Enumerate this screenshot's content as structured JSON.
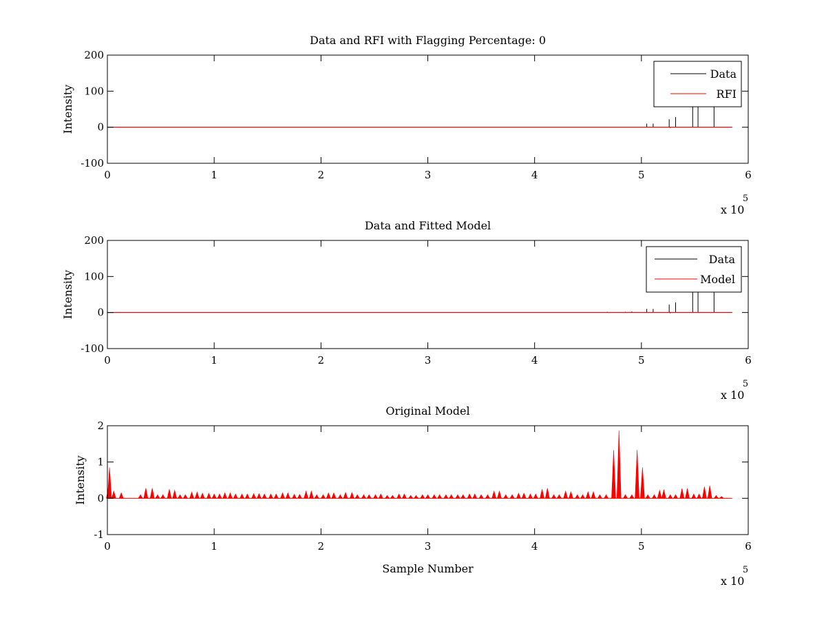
{
  "chart_data": [
    {
      "type": "line",
      "title": "Data and RFI with Flagging Percentage: 0",
      "xlabel": "",
      "ylabel": "Intensity",
      "xlim": [
        0,
        6
      ],
      "ylim": [
        -100,
        200
      ],
      "xticks": [
        "0",
        "1",
        "2",
        "3",
        "4",
        "5",
        "6"
      ],
      "yticks": [
        "-100",
        "0",
        "100",
        "200"
      ],
      "x_multiplier": "x 10",
      "x_exponent": "5",
      "legend_position": "top-right",
      "legend": [
        "Data",
        "RFI"
      ],
      "colors": {
        "Data": "#000000",
        "RFI": "#ff0000"
      },
      "baseline_range": [
        0,
        5.85
      ],
      "series": [
        {
          "name": "Data",
          "spikes": [
            [
              5.05,
              10
            ],
            [
              5.11,
              10
            ],
            [
              5.26,
              22
            ],
            [
              5.27,
              -2
            ],
            [
              5.32,
              28
            ],
            [
              5.48,
              60
            ],
            [
              5.53,
              60
            ],
            [
              5.68,
              60
            ]
          ]
        },
        {
          "name": "RFI",
          "spikes": []
        }
      ]
    },
    {
      "type": "line",
      "title": "Data and Fitted Model",
      "xlabel": "",
      "ylabel": "Intensity",
      "xlim": [
        0,
        6
      ],
      "ylim": [
        -100,
        200
      ],
      "xticks": [
        "0",
        "1",
        "2",
        "3",
        "4",
        "5",
        "6"
      ],
      "yticks": [
        "-100",
        "0",
        "100",
        "200"
      ],
      "x_multiplier": "x 10",
      "x_exponent": "5",
      "legend_position": "top-right",
      "legend": [
        "Data",
        "Model"
      ],
      "colors": {
        "Data": "#000000",
        "Model": "#ff0000"
      },
      "baseline_range": [
        0,
        5.85
      ],
      "series": [
        {
          "name": "Data",
          "spikes": [
            [
              4.68,
              2
            ],
            [
              4.85,
              2
            ],
            [
              4.91,
              3
            ],
            [
              5.05,
              10
            ],
            [
              5.11,
              10
            ],
            [
              5.26,
              22
            ],
            [
              5.27,
              -2
            ],
            [
              5.32,
              28
            ],
            [
              5.48,
              60
            ],
            [
              5.53,
              60
            ],
            [
              5.68,
              60
            ]
          ]
        },
        {
          "name": "Model",
          "spikes": []
        }
      ]
    },
    {
      "type": "line",
      "title": "Original Model",
      "xlabel": "Sample Number",
      "ylabel": "Intensity",
      "xlim": [
        0,
        6
      ],
      "ylim": [
        -1,
        2
      ],
      "xticks": [
        "0",
        "1",
        "2",
        "3",
        "4",
        "5",
        "6"
      ],
      "yticks": [
        "-1",
        "0",
        "1",
        "2"
      ],
      "x_multiplier": "x 10",
      "x_exponent": "5",
      "legend_position": "none",
      "legend": [],
      "colors": {
        "Model": "#ff0000"
      },
      "baseline_range": [
        0,
        5.85
      ],
      "series": [
        {
          "name": "",
          "spikes": [
            [
              0.01,
              0.3
            ],
            [
              0.02,
              0.85
            ],
            [
              0.06,
              0.2
            ],
            [
              0.13,
              0.15
            ],
            [
              0.31,
              0.1
            ],
            [
              0.36,
              0.28
            ],
            [
              0.42,
              0.28
            ],
            [
              0.47,
              0.1
            ],
            [
              0.52,
              0.1
            ],
            [
              0.58,
              0.25
            ],
            [
              0.63,
              0.22
            ],
            [
              0.68,
              0.1
            ],
            [
              0.73,
              0.1
            ],
            [
              0.79,
              0.17
            ],
            [
              0.84,
              0.17
            ],
            [
              0.89,
              0.14
            ],
            [
              0.95,
              0.14
            ],
            [
              1.0,
              0.12
            ],
            [
              1.05,
              0.12
            ],
            [
              1.1,
              0.15
            ],
            [
              1.15,
              0.15
            ],
            [
              1.2,
              0.12
            ],
            [
              1.26,
              0.12
            ],
            [
              1.31,
              0.12
            ],
            [
              1.37,
              0.13
            ],
            [
              1.42,
              0.13
            ],
            [
              1.47,
              0.12
            ],
            [
              1.53,
              0.12
            ],
            [
              1.58,
              0.12
            ],
            [
              1.64,
              0.15
            ],
            [
              1.69,
              0.15
            ],
            [
              1.75,
              0.11
            ],
            [
              1.8,
              0.11
            ],
            [
              1.86,
              0.2
            ],
            [
              1.91,
              0.2
            ],
            [
              1.96,
              0.1
            ],
            [
              2.02,
              0.1
            ],
            [
              2.07,
              0.15
            ],
            [
              2.12,
              0.15
            ],
            [
              2.18,
              0.1
            ],
            [
              2.23,
              0.16
            ],
            [
              2.29,
              0.16
            ],
            [
              2.34,
              0.1
            ],
            [
              2.4,
              0.1
            ],
            [
              2.45,
              0.1
            ],
            [
              2.51,
              0.1
            ],
            [
              2.56,
              0.12
            ],
            [
              2.62,
              0.08
            ],
            [
              2.67,
              0.08
            ],
            [
              2.73,
              0.12
            ],
            [
              2.78,
              0.12
            ],
            [
              2.84,
              0.08
            ],
            [
              2.89,
              0.08
            ],
            [
              2.95,
              0.1
            ],
            [
              3.0,
              0.1
            ],
            [
              3.06,
              0.1
            ],
            [
              3.11,
              0.1
            ],
            [
              3.17,
              0.1
            ],
            [
              3.22,
              0.1
            ],
            [
              3.28,
              0.1
            ],
            [
              3.33,
              0.1
            ],
            [
              3.39,
              0.12
            ],
            [
              3.44,
              0.12
            ],
            [
              3.5,
              0.1
            ],
            [
              3.56,
              0.1
            ],
            [
              3.62,
              0.2
            ],
            [
              3.67,
              0.2
            ],
            [
              3.73,
              0.1
            ],
            [
              3.79,
              0.1
            ],
            [
              3.85,
              0.14
            ],
            [
              3.9,
              0.14
            ],
            [
              3.96,
              0.12
            ],
            [
              4.01,
              0.12
            ],
            [
              4.07,
              0.25
            ],
            [
              4.12,
              0.28
            ],
            [
              4.18,
              0.1
            ],
            [
              4.23,
              0.1
            ],
            [
              4.29,
              0.2
            ],
            [
              4.34,
              0.18
            ],
            [
              4.4,
              0.1
            ],
            [
              4.45,
              0.1
            ],
            [
              4.5,
              0.18
            ],
            [
              4.55,
              0.18
            ],
            [
              4.61,
              0.1
            ],
            [
              4.67,
              0.1
            ],
            [
              4.74,
              1.33
            ],
            [
              4.79,
              1.87
            ],
            [
              4.85,
              0.1
            ],
            [
              4.91,
              0.1
            ],
            [
              4.96,
              1.33
            ],
            [
              5.01,
              0.85
            ],
            [
              5.06,
              0.1
            ],
            [
              5.12,
              0.1
            ],
            [
              5.17,
              0.22
            ],
            [
              5.21,
              0.24
            ],
            [
              5.27,
              0.1
            ],
            [
              5.32,
              0.1
            ],
            [
              5.38,
              0.27
            ],
            [
              5.43,
              0.27
            ],
            [
              5.49,
              0.12
            ],
            [
              5.54,
              0.12
            ],
            [
              5.59,
              0.32
            ],
            [
              5.64,
              0.35
            ],
            [
              5.7,
              0.08
            ],
            [
              5.75,
              0.05
            ]
          ]
        }
      ]
    }
  ]
}
